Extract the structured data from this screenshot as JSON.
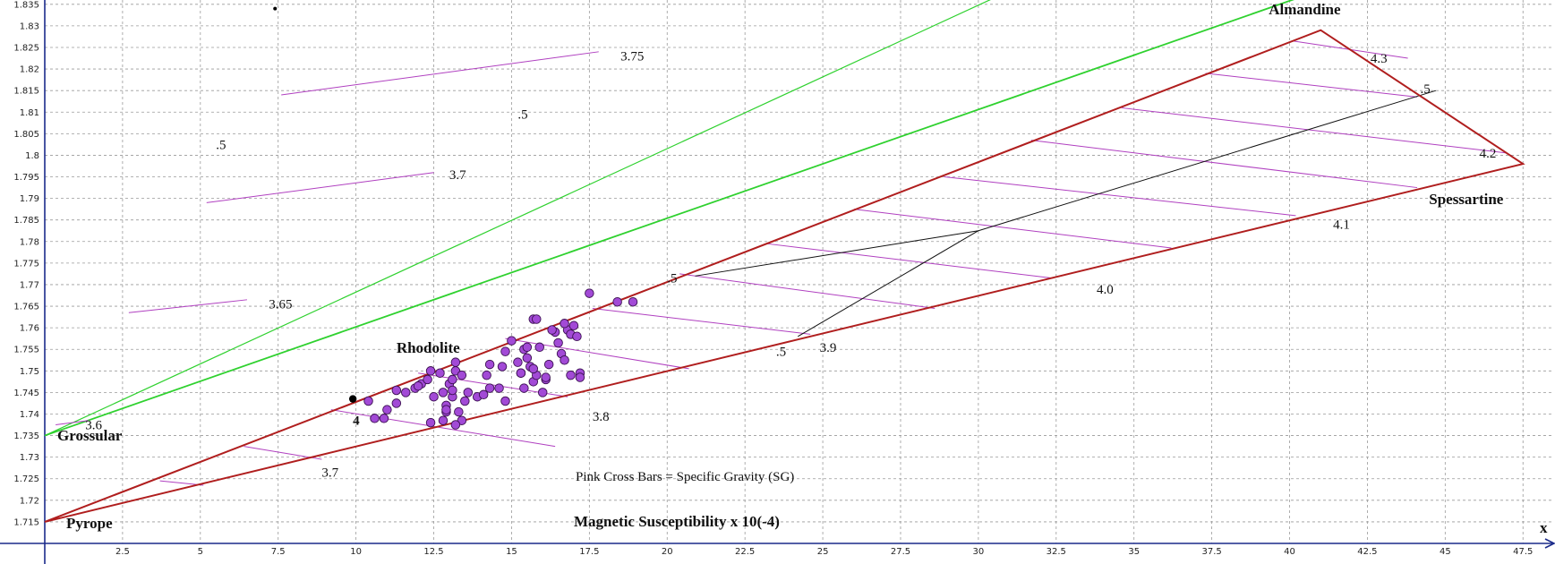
{
  "chart_data": {
    "type": "scatter",
    "xlim": [
      0,
      48.5
    ],
    "ylim": [
      1.71,
      1.836
    ],
    "x_axis_label": "x",
    "x_axis_title": "Magnetic Susceptibility x 10(-4)",
    "note": "Pink Cross Bars = Specific Gravity (SG)",
    "grid": true,
    "x_ticks": [
      2.5,
      5,
      7.5,
      10,
      12.5,
      15,
      17.5,
      20,
      22.5,
      25,
      27.5,
      30,
      32.5,
      35,
      37.5,
      40,
      42.5,
      45,
      47.5
    ],
    "y_ticks": [
      1.715,
      1.72,
      1.725,
      1.73,
      1.735,
      1.74,
      1.745,
      1.75,
      1.755,
      1.76,
      1.765,
      1.77,
      1.775,
      1.78,
      1.785,
      1.79,
      1.795,
      1.8,
      1.805,
      1.81,
      1.815,
      1.82,
      1.825,
      1.83,
      1.835
    ],
    "y_tick_labels": [
      "1.715",
      "1.72",
      "1.725",
      "1.73",
      "1.735",
      "1.74",
      "1.745",
      "1.75",
      "1.755",
      "1.76",
      "1.765",
      "1.77",
      "1.775",
      "1.78",
      "1.785",
      "1.79",
      "1.795",
      "1.8",
      "1.805",
      "1.81",
      "1.815",
      "1.82",
      "1.825",
      "1.83",
      "1.835"
    ],
    "endmembers": [
      {
        "name": "Pyrope",
        "x": 0,
        "y": 1.715
      },
      {
        "name": "Grossular",
        "x": 0,
        "y": 1.735
      },
      {
        "name": "Almandine",
        "x": 41,
        "y": 1.829
      },
      {
        "name": "Spessartine",
        "x": 47.5,
        "y": 1.798
      }
    ],
    "triangle_color": "#b01e1e",
    "green_color": "#2fd12f",
    "sg_bar_color": "#b040c0",
    "point_color": "#a24ad6",
    "green_lines": [
      {
        "from": [
          0,
          1.735
        ],
        "to": [
          49.6,
          1.9
        ],
        "width": 1.2
      },
      {
        "from": [
          0,
          1.735
        ],
        "to": [
          49.6,
          1.86
        ],
        "width": 1.8
      }
    ],
    "tie_lines": [
      {
        "points": [
          [
            20.9,
            1.772
          ],
          [
            30,
            1.7825
          ],
          [
            44.7,
            1.815
          ]
        ]
      },
      {
        "points": [
          [
            24.2,
            1.758
          ],
          [
            30,
            1.7825
          ]
        ]
      }
    ],
    "sg_bars": [
      {
        "from": [
          0.35,
          1.7375
        ],
        "to": [
          1.4,
          1.7385
        ]
      },
      {
        "from": [
          2.7,
          1.7635
        ],
        "to": [
          6.5,
          1.7665
        ]
      },
      {
        "from": [
          5.2,
          1.789
        ],
        "to": [
          12.5,
          1.796
        ]
      },
      {
        "from": [
          7.6,
          1.814
        ],
        "to": [
          17.8,
          1.824
        ]
      },
      {
        "from": [
          3.7,
          1.7245
        ],
        "to": [
          5.1,
          1.7235
        ]
      },
      {
        "from": [
          6.4,
          1.7325
        ],
        "to": [
          8.9,
          1.7295
        ]
      },
      {
        "from": [
          9.2,
          1.741
        ],
        "to": [
          16.4,
          1.7325
        ]
      },
      {
        "from": [
          12,
          1.7495
        ],
        "to": [
          16.8,
          1.744
        ]
      },
      {
        "from": [
          14.8,
          1.7575
        ],
        "to": [
          20.7,
          1.7505
        ]
      },
      {
        "from": [
          17.6,
          1.7645
        ],
        "to": [
          24.6,
          1.7585
        ]
      },
      {
        "from": [
          20.4,
          1.7725
        ],
        "to": [
          28.6,
          1.7645
        ]
      },
      {
        "from": [
          23.2,
          1.7795
        ],
        "to": [
          32.4,
          1.7715
        ]
      },
      {
        "from": [
          26,
          1.7875
        ],
        "to": [
          36.2,
          1.7785
        ]
      },
      {
        "from": [
          28.9,
          1.795
        ],
        "to": [
          40.2,
          1.786
        ]
      },
      {
        "from": [
          31.7,
          1.8035
        ],
        "to": [
          44.1,
          1.7925
        ]
      },
      {
        "from": [
          34.6,
          1.811
        ],
        "to": [
          47,
          1.8005
        ]
      },
      {
        "from": [
          37.3,
          1.819
        ],
        "to": [
          44.1,
          1.8135
        ]
      },
      {
        "from": [
          40.1,
          1.8265
        ],
        "to": [
          43.8,
          1.8225
        ]
      }
    ],
    "line_labels": [
      {
        "text": "3.6",
        "x": 1.3,
        "y": 1.7375
      },
      {
        "text": "3.65",
        "x": 7.2,
        "y": 1.7655
      },
      {
        "text": "3.7",
        "x": 13,
        "y": 1.7955
      },
      {
        "text": "3.75",
        "x": 18.5,
        "y": 1.823
      },
      {
        "text": ".5",
        "x": 5.5,
        "y": 1.8025
      },
      {
        "text": ".5",
        "x": 15.2,
        "y": 1.8095
      },
      {
        "text": "3.7",
        "x": 8.9,
        "y": 1.7265
      },
      {
        "text": "3.8",
        "x": 17.6,
        "y": 1.7395
      },
      {
        "text": "3.9",
        "x": 24.9,
        "y": 1.7555
      },
      {
        "text": "4.0",
        "x": 33.8,
        "y": 1.769
      },
      {
        "text": "4.1",
        "x": 41.4,
        "y": 1.784
      },
      {
        "text": "4.2",
        "x": 46.1,
        "y": 1.8005
      },
      {
        "text": "4.3",
        "x": 42.6,
        "y": 1.8225
      },
      {
        "text": ".5",
        "x": 44.2,
        "y": 1.8155
      },
      {
        "text": ".5",
        "x": 20,
        "y": 1.7715
      },
      {
        "text": ".5",
        "x": 23.5,
        "y": 1.7545
      },
      {
        "text": "4",
        "x": 9.9,
        "y": 1.7385
      }
    ],
    "series": [
      {
        "name": "Rhodolite",
        "x": [
          10.4,
          10.6,
          11,
          11.3,
          11.6,
          11.9,
          12.1,
          12.3,
          12.5,
          12.4,
          12.8,
          12.9,
          13,
          13.1,
          13.2,
          12.9,
          13.2,
          13.4,
          13.1,
          12.9,
          13.3,
          13.6,
          13.9,
          13.5,
          14.2,
          14.3,
          14.7,
          14.6,
          14.8,
          15,
          15.2,
          15.3,
          15.4,
          15.5,
          15.6,
          15.7,
          15.8,
          15.9,
          16,
          16.1,
          15.4,
          15.7,
          16.2,
          16.5,
          16.6,
          16.8,
          16.9,
          17.1,
          16.4,
          16.7,
          17,
          17.2,
          15.7,
          15.8,
          16.9,
          17.5,
          18.4,
          18.9,
          14.3,
          14.8,
          15.5,
          16.1,
          13.4,
          13.2,
          12.8,
          10.9,
          11.3,
          12,
          12.4,
          13.1,
          12.7,
          16.3,
          16.7,
          17.2,
          15.3,
          14.1
        ],
        "y": [
          1.743,
          1.739,
          1.741,
          1.7425,
          1.745,
          1.746,
          1.747,
          1.748,
          1.744,
          1.738,
          1.745,
          1.742,
          1.747,
          1.748,
          1.752,
          1.7405,
          1.75,
          1.749,
          1.744,
          1.741,
          1.7405,
          1.745,
          1.744,
          1.743,
          1.749,
          1.7515,
          1.751,
          1.746,
          1.7545,
          1.757,
          1.752,
          1.7495,
          1.755,
          1.753,
          1.751,
          1.7475,
          1.749,
          1.7555,
          1.745,
          1.748,
          1.746,
          1.7505,
          1.7515,
          1.7565,
          1.754,
          1.7595,
          1.7585,
          1.758,
          1.759,
          1.761,
          1.7605,
          1.7495,
          1.762,
          1.762,
          1.749,
          1.768,
          1.766,
          1.766,
          1.746,
          1.743,
          1.7555,
          1.7485,
          1.7385,
          1.7375,
          1.7385,
          1.739,
          1.7455,
          1.7465,
          1.75,
          1.7455,
          1.7495,
          1.7595,
          1.7525,
          1.7485,
          1.7495,
          1.7445
        ],
        "color": "#a24ad6"
      }
    ],
    "black_points": [
      {
        "x": 7.4,
        "y": 1.834
      },
      {
        "x": 9.9,
        "y": 1.7435
      }
    ],
    "rhodolite_label": {
      "text": "Rhodolite",
      "x": 11.3,
      "y": 1.7555
    }
  }
}
